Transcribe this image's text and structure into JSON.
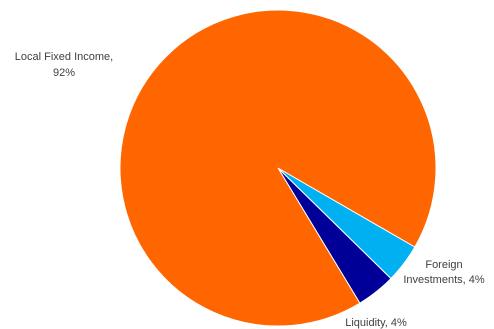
{
  "chart_data": {
    "type": "pie",
    "title": "",
    "start_angle_deg": 0,
    "direction": "clockwise_from_top_going_counterclockwise",
    "slices": [
      {
        "label": "Foreign Investments",
        "value": 4,
        "color": "#00B0F0",
        "data_label": [
          "Foreign",
          "Investments, 4%"
        ]
      },
      {
        "label": "Liquidity",
        "value": 4,
        "color": "#000099",
        "data_label": [
          "Liquidity, 4%"
        ]
      },
      {
        "label": "Local Fixed Income",
        "value": 92,
        "color": "#FF6600",
        "data_label": [
          "Local Fixed Income,",
          "92%"
        ]
      }
    ]
  }
}
